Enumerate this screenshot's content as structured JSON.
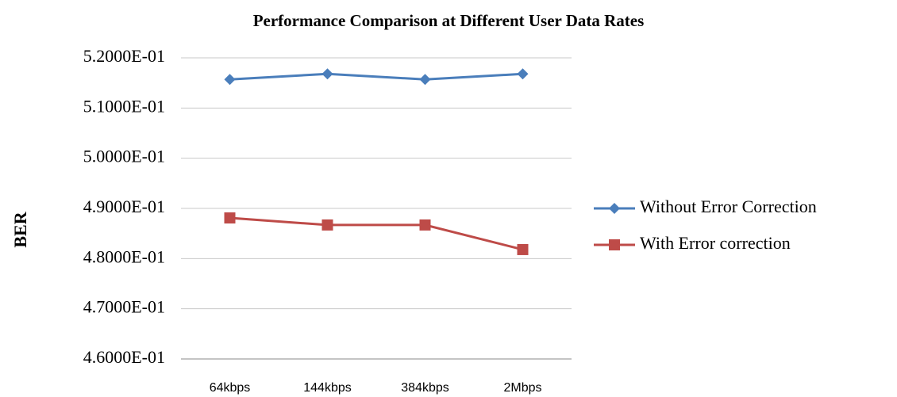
{
  "chart_data": {
    "type": "line",
    "title": "Performance Comparison at Different User Data Rates",
    "y_label": "BER",
    "categories": [
      "64kbps",
      "144kbps",
      "384kbps",
      "2Mbps"
    ],
    "series": [
      {
        "name": "Without Error Correction",
        "color": "#4a7ebb",
        "marker": "diamond",
        "values": [
          0.5157,
          0.5168,
          0.5157,
          0.5168
        ]
      },
      {
        "name": "With Error correction",
        "color": "#be4b48",
        "marker": "square",
        "values": [
          0.4881,
          0.4867,
          0.4867,
          0.4818
        ]
      }
    ],
    "ylim": [
      0.46,
      0.52
    ],
    "yticks": [
      {
        "value": 0.46,
        "label": "4.6000E-01"
      },
      {
        "value": 0.47,
        "label": "4.7000E-01"
      },
      {
        "value": 0.48,
        "label": "4.8000E-01"
      },
      {
        "value": 0.49,
        "label": "4.9000E-01"
      },
      {
        "value": 0.5,
        "label": "5.0000E-01"
      },
      {
        "value": 0.51,
        "label": "5.1000E-01"
      },
      {
        "value": 0.52,
        "label": "5.2000E-01"
      }
    ],
    "grid": true,
    "legend": "right"
  }
}
